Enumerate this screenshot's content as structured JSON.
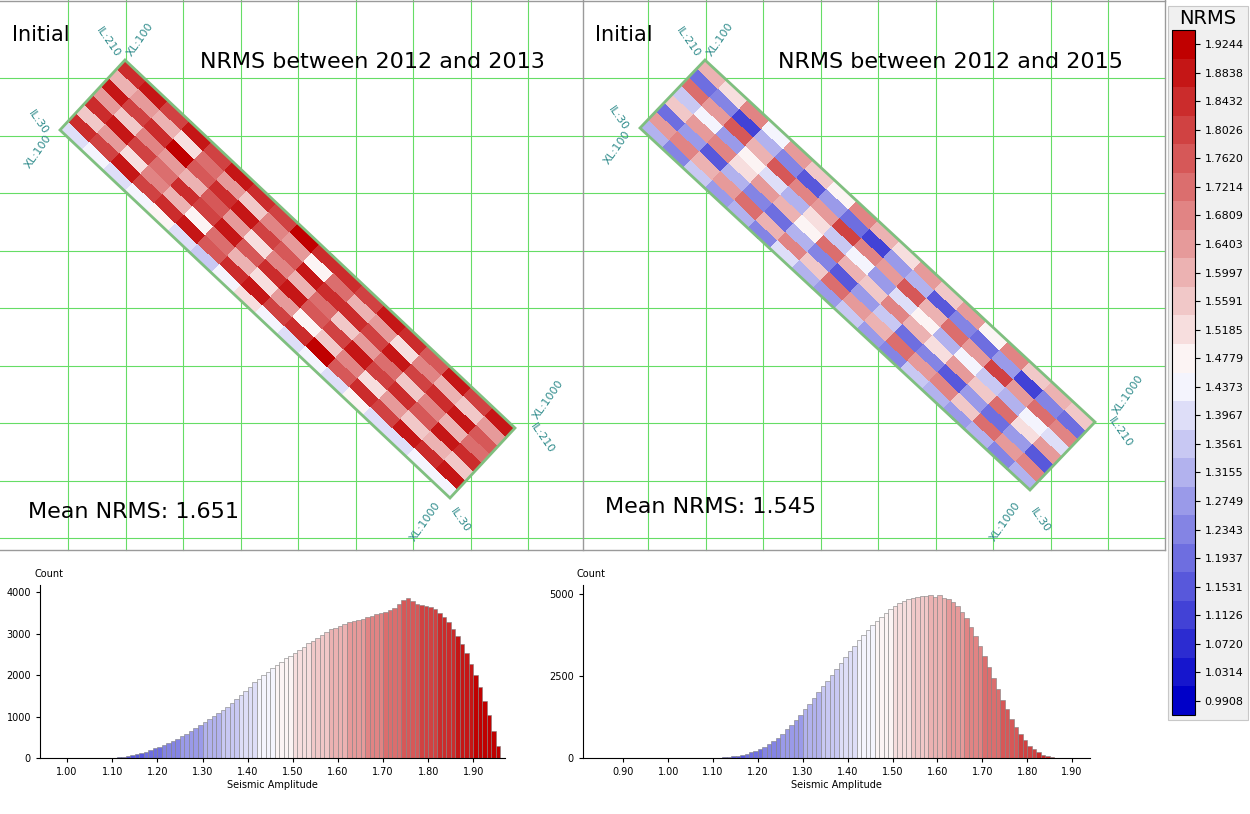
{
  "chart_data": [
    {
      "type": "heatmap",
      "label": "Initial",
      "title": "NRMS between 2012 and 2013",
      "annotation": "Mean NRMS: 1.651",
      "corner_labels": [
        "IL:210",
        "XL:100",
        "IL:30",
        "XL:100",
        "XL:1000",
        "IL:210",
        "XL:1000",
        "IL:30"
      ],
      "inline_range": [
        30,
        210
      ],
      "crossline_range": [
        100,
        1000
      ],
      "values": [
        [
          1.4,
          1.45,
          1.38,
          1.42,
          1.48,
          1.4,
          1.36,
          1.44,
          1.5,
          1.42,
          1.38,
          1.45,
          1.4,
          1.47,
          1.41,
          1.39,
          1.44,
          1.42
        ],
        [
          1.86,
          1.82,
          1.88,
          1.79,
          1.84,
          1.9,
          1.76,
          1.83,
          1.87,
          1.8,
          1.85,
          1.91,
          1.78,
          1.86,
          1.82,
          1.89,
          1.84,
          1.87
        ],
        [
          1.55,
          1.62,
          1.5,
          1.68,
          1.58,
          1.47,
          1.72,
          1.6,
          1.53,
          1.66,
          1.49,
          1.57,
          1.7,
          1.52,
          1.63,
          1.56,
          1.61,
          1.54
        ],
        [
          1.83,
          1.88,
          1.79,
          1.74,
          1.86,
          1.81,
          1.9,
          1.77,
          1.84,
          1.88,
          1.75,
          1.82,
          1.87,
          1.8,
          1.85,
          1.78,
          1.89,
          1.83
        ],
        [
          1.62,
          1.54,
          1.7,
          1.66,
          1.58,
          1.75,
          1.64,
          1.52,
          1.69,
          1.6,
          1.73,
          1.57,
          1.65,
          1.71,
          1.55,
          1.67,
          1.59,
          1.72
        ],
        [
          1.88,
          1.8,
          1.85,
          1.91,
          1.78,
          1.84,
          1.87,
          1.82,
          1.76,
          1.89,
          1.83,
          1.86,
          1.79,
          1.9,
          1.81,
          1.85,
          1.88,
          1.77
        ],
        [
          1.58,
          1.66,
          1.61,
          1.5,
          1.73,
          1.64,
          1.55,
          1.69,
          1.62,
          1.48,
          1.71,
          1.59,
          1.66,
          1.53,
          1.68,
          1.6,
          1.57,
          1.65
        ],
        [
          1.85,
          1.9,
          1.82,
          1.87,
          1.8,
          1.88,
          1.84,
          1.79,
          1.91,
          1.83,
          1.86,
          1.81,
          1.89,
          1.85,
          1.78,
          1.87,
          1.82,
          1.88
        ]
      ]
    },
    {
      "type": "heatmap",
      "label": "Initial",
      "title": "NRMS between 2012 and 2015",
      "annotation": "Mean NRMS: 1.545",
      "corner_labels": [
        "IL:210",
        "XL:100",
        "IL:30",
        "XL:100",
        "XL:1000",
        "IL:210",
        "XL:1000",
        "IL:30"
      ],
      "inline_range": [
        30,
        210
      ],
      "crossline_range": [
        100,
        1000
      ],
      "values": [
        [
          1.3,
          1.25,
          1.35,
          1.28,
          1.32,
          1.22,
          1.38,
          1.3,
          1.26,
          1.34,
          1.29,
          1.24,
          1.36,
          1.31,
          1.27,
          1.33,
          1.25,
          1.3
        ],
        [
          1.62,
          1.7,
          1.58,
          1.66,
          1.74,
          1.6,
          1.68,
          1.55,
          1.72,
          1.64,
          1.59,
          1.71,
          1.63,
          1.67,
          1.57,
          1.73,
          1.65,
          1.69
        ],
        [
          1.2,
          1.28,
          1.15,
          1.32,
          1.24,
          1.18,
          1.3,
          1.22,
          1.14,
          1.27,
          1.35,
          1.19,
          1.25,
          1.16,
          1.29,
          1.21,
          1.26,
          1.17
        ],
        [
          1.55,
          1.63,
          1.7,
          1.52,
          1.66,
          1.58,
          1.49,
          1.72,
          1.6,
          1.54,
          1.68,
          1.61,
          1.5,
          1.65,
          1.57,
          1.71,
          1.53,
          1.62
        ],
        [
          1.35,
          1.42,
          1.28,
          1.47,
          1.38,
          1.31,
          1.5,
          1.36,
          1.44,
          1.29,
          1.4,
          1.48,
          1.33,
          1.45,
          1.37,
          1.3,
          1.43,
          1.39
        ],
        [
          1.72,
          1.65,
          1.78,
          1.6,
          1.75,
          1.68,
          1.62,
          1.8,
          1.7,
          1.64,
          1.77,
          1.61,
          1.73,
          1.66,
          1.79,
          1.63,
          1.74,
          1.69
        ],
        [
          1.18,
          1.25,
          1.12,
          1.3,
          1.22,
          1.16,
          1.28,
          1.2,
          1.1,
          1.26,
          1.33,
          1.15,
          1.24,
          1.19,
          1.27,
          1.13,
          1.23,
          1.21
        ],
        [
          1.6,
          1.52,
          1.67,
          1.45,
          1.63,
          1.56,
          1.48,
          1.7,
          1.58,
          1.5,
          1.65,
          1.54,
          1.62,
          1.47,
          1.68,
          1.55,
          1.61,
          1.57
        ]
      ]
    },
    {
      "type": "histogram",
      "x_label": "Seismic Amplitude",
      "y_label": "Count",
      "bins": [
        1.1,
        1.11,
        1.12,
        1.13,
        1.14,
        1.15,
        1.16,
        1.17,
        1.18,
        1.19,
        1.2,
        1.21,
        1.22,
        1.23,
        1.24,
        1.25,
        1.26,
        1.27,
        1.28,
        1.29,
        1.3,
        1.31,
        1.32,
        1.33,
        1.34,
        1.35,
        1.36,
        1.37,
        1.38,
        1.39,
        1.4,
        1.41,
        1.42,
        1.43,
        1.44,
        1.45,
        1.46,
        1.47,
        1.48,
        1.49,
        1.5,
        1.51,
        1.52,
        1.53,
        1.54,
        1.55,
        1.56,
        1.57,
        1.58,
        1.59,
        1.6,
        1.61,
        1.62,
        1.63,
        1.64,
        1.65,
        1.66,
        1.67,
        1.68,
        1.69,
        1.7,
        1.71,
        1.72,
        1.73,
        1.74,
        1.75,
        1.76,
        1.77,
        1.78,
        1.79,
        1.8,
        1.81,
        1.82,
        1.83,
        1.84,
        1.85,
        1.86,
        1.87,
        1.88,
        1.89,
        1.9,
        1.91,
        1.92,
        1.93,
        1.94,
        1.95,
        1.96
      ],
      "counts": [
        10,
        20,
        30,
        50,
        70,
        90,
        120,
        150,
        190,
        230,
        270,
        310,
        360,
        410,
        460,
        520,
        580,
        650,
        720,
        800,
        870,
        940,
        1010,
        1080,
        1150,
        1230,
        1320,
        1420,
        1520,
        1620,
        1720,
        1820,
        1910,
        2000,
        2080,
        2160,
        2250,
        2320,
        2400,
        2460,
        2530,
        2600,
        2680,
        2760,
        2830,
        2900,
        2970,
        3040,
        3100,
        3130,
        3170,
        3230,
        3280,
        3300,
        3330,
        3360,
        3400,
        3430,
        3470,
        3500,
        3530,
        3560,
        3620,
        3700,
        3820,
        3860,
        3790,
        3720,
        3690,
        3670,
        3640,
        3580,
        3500,
        3400,
        3280,
        3120,
        2950,
        2750,
        2520,
        2270,
        1990,
        1700,
        1380,
        1030,
        650,
        300
      ],
      "xlim": [
        0.94,
        1.97
      ],
      "xticks": [
        {
          "value": 1.0,
          "label": "1.00"
        },
        {
          "value": 1.1,
          "label": "1.10"
        },
        {
          "value": 1.2,
          "label": "1.20"
        },
        {
          "value": 1.3,
          "label": "1.30"
        },
        {
          "value": 1.4,
          "label": "1.40"
        },
        {
          "value": 1.5,
          "label": "1.50"
        },
        {
          "value": 1.6,
          "label": "1.60"
        },
        {
          "value": 1.7,
          "label": "1.70"
        },
        {
          "value": 1.8,
          "label": "1.80"
        },
        {
          "value": 1.9,
          "label": "1.90"
        }
      ],
      "ylim": [
        0,
        4170
      ],
      "yticks": [
        0,
        1000,
        2000,
        3000,
        4000
      ]
    },
    {
      "type": "histogram",
      "x_label": "Seismic Amplitude",
      "y_label": "Count",
      "bins": [
        1.1,
        1.11,
        1.12,
        1.13,
        1.14,
        1.15,
        1.16,
        1.17,
        1.18,
        1.19,
        1.2,
        1.21,
        1.22,
        1.23,
        1.24,
        1.25,
        1.26,
        1.27,
        1.28,
        1.29,
        1.3,
        1.31,
        1.32,
        1.33,
        1.34,
        1.35,
        1.36,
        1.37,
        1.38,
        1.39,
        1.4,
        1.41,
        1.42,
        1.43,
        1.44,
        1.45,
        1.46,
        1.47,
        1.48,
        1.49,
        1.5,
        1.51,
        1.52,
        1.53,
        1.54,
        1.55,
        1.56,
        1.57,
        1.58,
        1.59,
        1.6,
        1.61,
        1.62,
        1.63,
        1.64,
        1.65,
        1.66,
        1.67,
        1.68,
        1.69,
        1.7,
        1.71,
        1.72,
        1.73,
        1.74,
        1.75,
        1.76,
        1.77,
        1.78,
        1.79,
        1.8,
        1.81,
        1.82,
        1.83,
        1.84,
        1.85,
        1.86
      ],
      "counts": [
        10,
        15,
        25,
        40,
        55,
        75,
        100,
        130,
        170,
        220,
        280,
        350,
        430,
        520,
        620,
        740,
        870,
        1010,
        1160,
        1320,
        1480,
        1650,
        1820,
        2000,
        2180,
        2360,
        2540,
        2720,
        2900,
        3080,
        3250,
        3420,
        3590,
        3750,
        3900,
        4050,
        4180,
        4310,
        4430,
        4540,
        4640,
        4720,
        4790,
        4850,
        4880,
        4900,
        4920,
        4950,
        4960,
        4900,
        4970,
        4880,
        4840,
        4750,
        4620,
        4450,
        4250,
        4000,
        3720,
        3420,
        3100,
        2770,
        2430,
        2100,
        1780,
        1480,
        1200,
        950,
        730,
        540,
        380,
        260,
        170,
        100,
        60,
        30
      ],
      "xlim": [
        0.81,
        1.94
      ],
      "xticks": [
        {
          "value": 0.9,
          "label": "0.90"
        },
        {
          "value": 1.0,
          "label": "1.00"
        },
        {
          "value": 1.1,
          "label": "1.10"
        },
        {
          "value": 1.2,
          "label": "1.20"
        },
        {
          "value": 1.3,
          "label": "1.30"
        },
        {
          "value": 1.4,
          "label": "1.40"
        },
        {
          "value": 1.5,
          "label": "1.50"
        },
        {
          "value": 1.6,
          "label": "1.60"
        },
        {
          "value": 1.7,
          "label": "1.70"
        },
        {
          "value": 1.8,
          "label": "1.80"
        },
        {
          "value": 1.9,
          "label": "1.90"
        }
      ],
      "ylim": [
        0,
        5270
      ],
      "yticks": [
        0,
        2500,
        5000
      ]
    }
  ],
  "colorbar": {
    "title": "NRMS",
    "range": [
      0.9705,
      1.9447
    ],
    "colormap": [
      "#0000c8",
      "#ffffff",
      "#c00000"
    ],
    "ticks": [
      0.9908,
      1.0314,
      {
        "value": 1.072,
        "label": "1.0720"
      },
      1.1126,
      1.1531,
      1.1937,
      1.2343,
      1.2749,
      1.3155,
      1.3561,
      1.3967,
      1.4373,
      1.4779,
      1.5185,
      1.5591,
      1.5997,
      1.6403,
      1.6809,
      1.7214,
      {
        "value": 1.762,
        "label": "1.7620"
      },
      1.8026,
      1.8432,
      1.8838,
      1.9244
    ]
  }
}
